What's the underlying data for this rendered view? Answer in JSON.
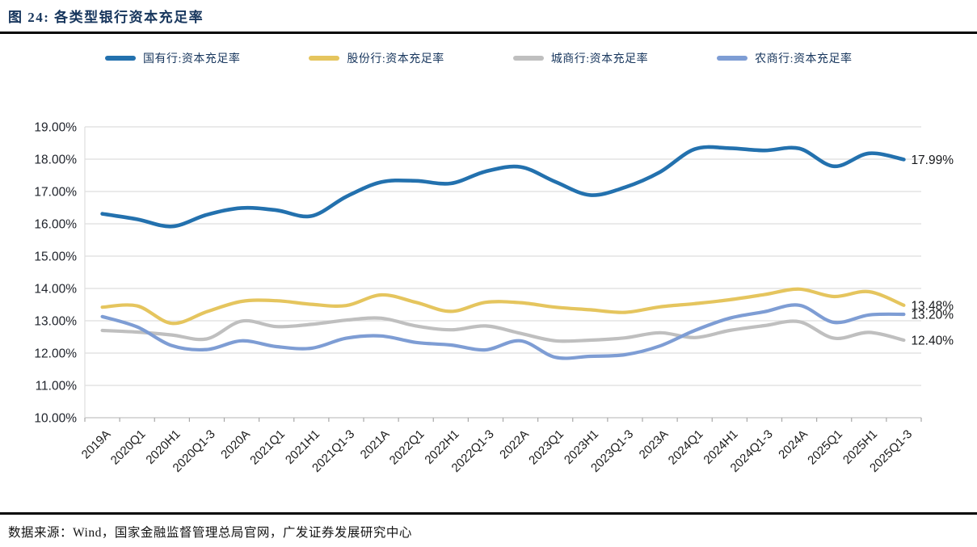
{
  "header": {
    "title": "图 24: 各类型银行资本充足率"
  },
  "footer": {
    "source": "数据来源：Wind，国家金融监督管理总局官网，广发证券发展研究中心"
  },
  "chart_data": {
    "type": "line",
    "title": "图 24: 各类型银行资本充足率",
    "categories": [
      "2019A",
      "2020Q1",
      "2020H1",
      "2020Q1-3",
      "2020A",
      "2021Q1",
      "2021H1",
      "2021Q1-3",
      "2021A",
      "2022Q1",
      "2022H1",
      "2022Q1-3",
      "2022A",
      "2023Q1",
      "2023H1",
      "2023Q1-3",
      "2023A",
      "2024Q1",
      "2024H1",
      "2024Q1-3",
      "2024A",
      "2025Q1",
      "2025H1",
      "2025Q1-3"
    ],
    "series": [
      {
        "name": "国有行:资本充足率",
        "color": "#2371AE",
        "width": 4.6,
        "end_label": "17.99%",
        "values": [
          16.31,
          16.14,
          15.92,
          16.28,
          16.49,
          16.42,
          16.24,
          16.84,
          17.29,
          17.33,
          17.25,
          17.62,
          17.76,
          17.3,
          16.89,
          17.13,
          17.6,
          18.31,
          18.34,
          18.27,
          18.33,
          17.78,
          18.18,
          17.99
        ]
      },
      {
        "name": "股份行:资本充足率",
        "color": "#E5C55E",
        "width": 4.2,
        "end_label": "13.48%",
        "values": [
          13.42,
          13.46,
          12.92,
          13.28,
          13.6,
          13.62,
          13.51,
          13.47,
          13.8,
          13.57,
          13.29,
          13.57,
          13.56,
          13.42,
          13.34,
          13.26,
          13.43,
          13.53,
          13.65,
          13.81,
          13.98,
          13.75,
          13.9,
          13.48
        ]
      },
      {
        "name": "城商行:资本充足率",
        "color": "#BFBFBF",
        "width": 4.2,
        "end_label": "12.40%",
        "values": [
          12.7,
          12.65,
          12.56,
          12.44,
          12.99,
          12.82,
          12.89,
          13.02,
          13.08,
          12.84,
          12.72,
          12.84,
          12.61,
          12.38,
          12.4,
          12.47,
          12.63,
          12.48,
          12.7,
          12.85,
          12.97,
          12.46,
          12.64,
          12.4
        ]
      },
      {
        "name": "农商行:资本充足率",
        "color": "#7E9DD4",
        "width": 4.2,
        "end_label": "13.20%",
        "values": [
          13.13,
          12.81,
          12.23,
          12.11,
          12.38,
          12.2,
          12.15,
          12.46,
          12.53,
          12.33,
          12.25,
          12.1,
          12.38,
          11.87,
          11.9,
          11.95,
          12.22,
          12.7,
          13.08,
          13.28,
          13.48,
          12.95,
          13.18,
          13.2
        ]
      }
    ],
    "ylim": [
      10,
      19
    ],
    "ytick_step": 1,
    "ytick_format": "0.00%",
    "xlabel": "",
    "ylabel": "",
    "grid": "horizontal",
    "legend_position": "top"
  }
}
